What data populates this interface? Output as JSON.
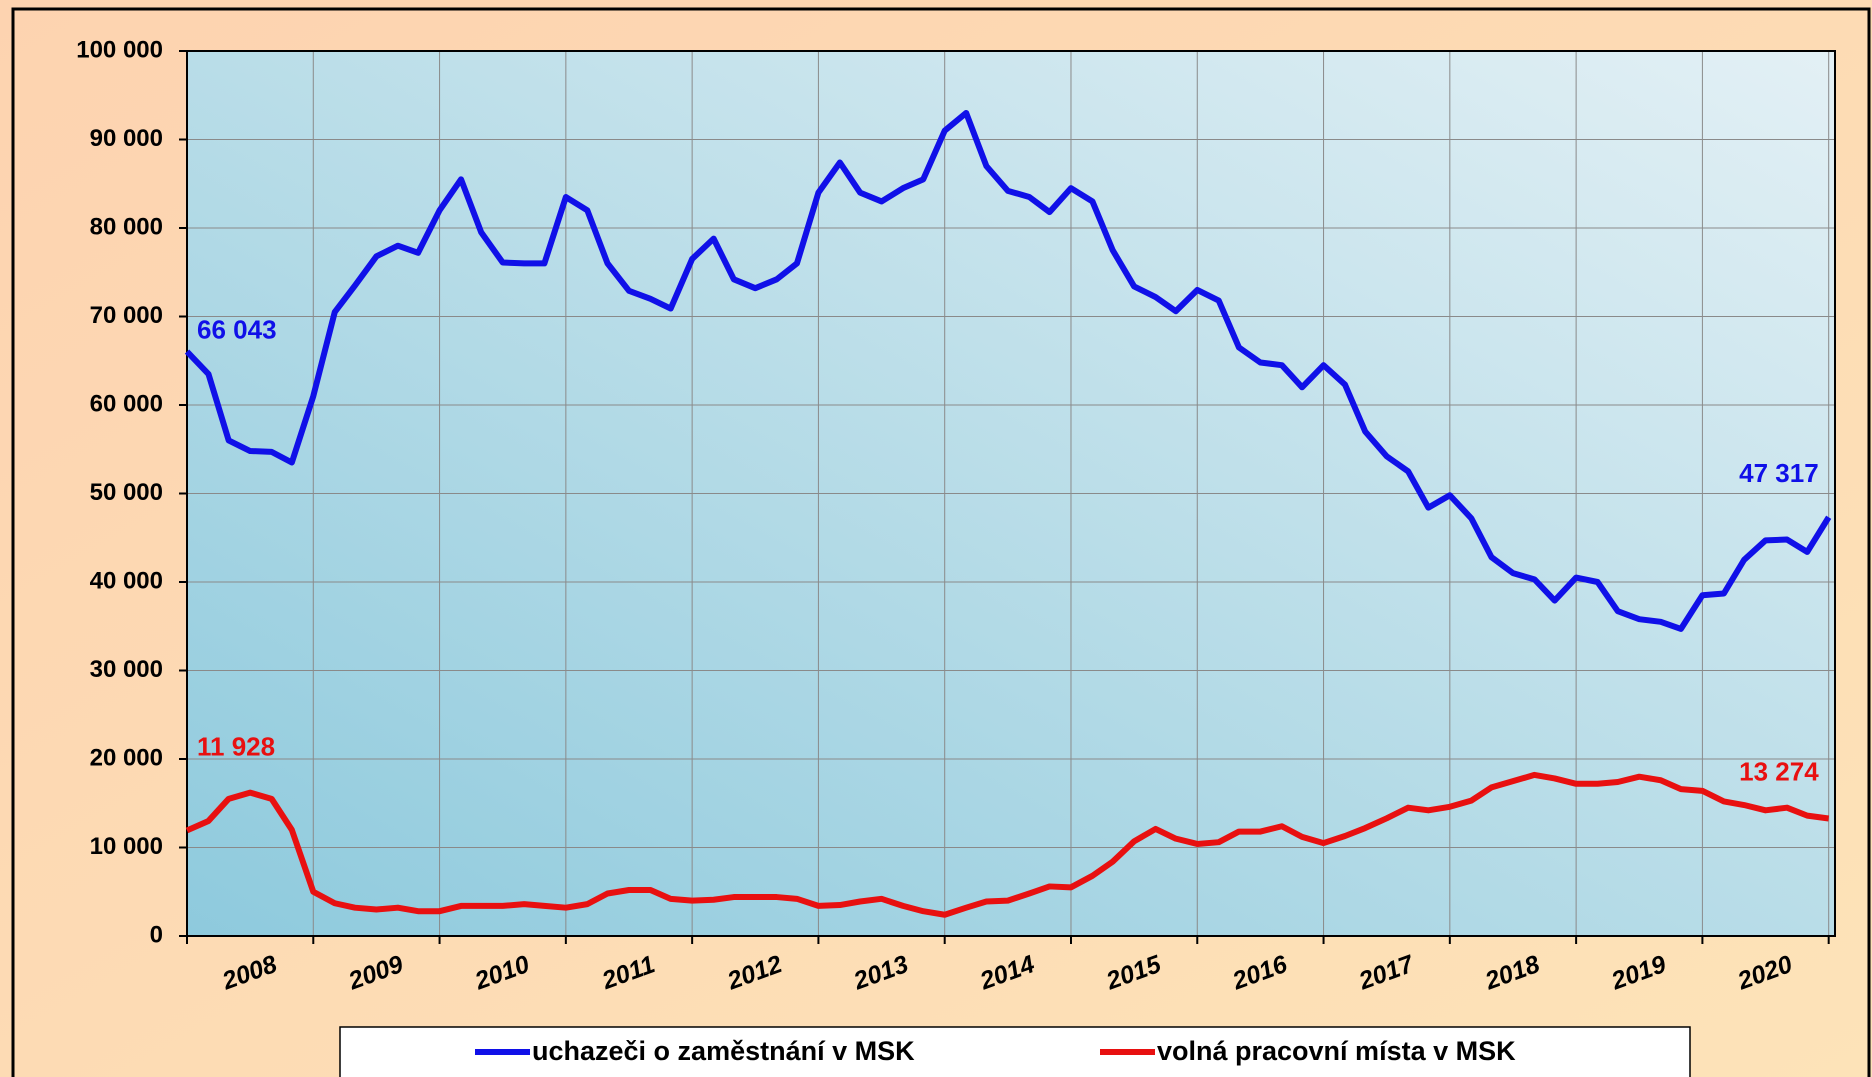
{
  "chart_data": {
    "type": "line",
    "x": [
      2008,
      2008.17,
      2008.33,
      2008.5,
      2008.67,
      2008.83,
      2009,
      2009.17,
      2009.33,
      2009.5,
      2009.67,
      2009.83,
      2010,
      2010.17,
      2010.33,
      2010.5,
      2010.67,
      2010.83,
      2011,
      2011.17,
      2011.33,
      2011.5,
      2011.67,
      2011.83,
      2012,
      2012.17,
      2012.33,
      2012.5,
      2012.67,
      2012.83,
      2013,
      2013.17,
      2013.33,
      2013.5,
      2013.67,
      2013.83,
      2014,
      2014.17,
      2014.33,
      2014.5,
      2014.67,
      2014.83,
      2015,
      2015.17,
      2015.33,
      2015.5,
      2015.67,
      2015.83,
      2016,
      2016.17,
      2016.33,
      2016.5,
      2016.67,
      2016.83,
      2017,
      2017.17,
      2017.33,
      2017.5,
      2017.67,
      2017.83,
      2018,
      2018.17,
      2018.33,
      2018.5,
      2018.67,
      2018.83,
      2019,
      2019.17,
      2019.33,
      2019.5,
      2019.67,
      2019.83,
      2020,
      2020.17,
      2020.33,
      2020.5,
      2020.67,
      2020.83,
      2021
    ],
    "series": [
      {
        "name": "uchazeči o zaměstnání v MSK",
        "color": "#1010e8",
        "values": [
          66043,
          63500,
          56000,
          54800,
          54700,
          53500,
          61000,
          70500,
          73500,
          76800,
          78000,
          77200,
          82000,
          85500,
          79500,
          76100,
          76000,
          76000,
          83500,
          82000,
          76000,
          72900,
          72000,
          70900,
          76500,
          78800,
          74200,
          73200,
          74200,
          76000,
          84000,
          87400,
          84000,
          83000,
          84500,
          85500,
          91000,
          93000,
          87000,
          84200,
          83500,
          81800,
          84500,
          83000,
          77500,
          73400,
          72200,
          70600,
          73000,
          71800,
          66500,
          64800,
          64500,
          62000,
          64500,
          62300,
          57000,
          54200,
          52500,
          48400,
          49800,
          47200,
          42800,
          41000,
          40300,
          37900,
          40500,
          40000,
          36700,
          35800,
          35500,
          34700,
          38500,
          38700,
          42500,
          44700,
          44800,
          43400,
          47317
        ],
        "value_labels": [
          "66 043",
          null,
          null,
          null,
          null,
          null,
          null,
          null,
          null,
          null,
          null,
          null,
          null,
          null,
          null,
          null,
          null,
          null,
          null,
          null,
          null,
          null,
          null,
          null,
          null,
          null,
          null,
          null,
          null,
          null,
          null,
          null,
          null,
          null,
          null,
          null,
          null,
          null,
          null,
          null,
          null,
          null,
          null,
          null,
          null,
          null,
          null,
          null,
          null,
          null,
          null,
          null,
          null,
          null,
          null,
          null,
          null,
          null,
          null,
          null,
          null,
          null,
          null,
          null,
          null,
          null,
          null,
          null,
          null,
          null,
          null,
          null,
          null,
          null,
          null,
          null,
          null,
          null,
          "47 317"
        ]
      },
      {
        "name": "volná pracovní místa v MSK",
        "color": "#e81010",
        "values": [
          11928,
          13000,
          15500,
          16200,
          15500,
          12000,
          5000,
          3700,
          3200,
          3000,
          3200,
          2800,
          2800,
          3400,
          3400,
          3400,
          3600,
          3400,
          3200,
          3600,
          4800,
          5200,
          5200,
          4200,
          4000,
          4100,
          4400,
          4400,
          4400,
          4200,
          3400,
          3500,
          3900,
          4200,
          3400,
          2800,
          2400,
          3200,
          3900,
          4000,
          4800,
          5600,
          5500,
          6800,
          8400,
          10700,
          12100,
          11000,
          10400,
          10600,
          11800,
          11800,
          12400,
          11200,
          10500,
          11300,
          12200,
          13300,
          14500,
          14200,
          14600,
          15300,
          16800,
          17500,
          18200,
          17800,
          17200,
          17200,
          17400,
          18000,
          17600,
          16600,
          16400,
          15200,
          14800,
          14200,
          14500,
          13600,
          13274
        ],
        "value_labels": [
          "11 928",
          null,
          null,
          null,
          null,
          null,
          null,
          null,
          null,
          null,
          null,
          null,
          null,
          null,
          null,
          null,
          null,
          null,
          null,
          null,
          null,
          null,
          null,
          null,
          null,
          null,
          null,
          null,
          null,
          null,
          null,
          null,
          null,
          null,
          null,
          null,
          null,
          null,
          null,
          null,
          null,
          null,
          null,
          null,
          null,
          null,
          null,
          null,
          null,
          null,
          null,
          null,
          null,
          null,
          null,
          null,
          null,
          null,
          null,
          null,
          null,
          null,
          null,
          null,
          null,
          null,
          null,
          null,
          null,
          null,
          null,
          null,
          null,
          null,
          null,
          null,
          null,
          null,
          "13 274"
        ]
      }
    ],
    "xlim": [
      2008,
      2021.05
    ],
    "xticks": [
      {
        "value": 2008.5,
        "label": "2008"
      },
      {
        "value": 2009.5,
        "label": "2009"
      },
      {
        "value": 2010.5,
        "label": "2010"
      },
      {
        "value": 2011.5,
        "label": "2011"
      },
      {
        "value": 2012.5,
        "label": "2012"
      },
      {
        "value": 2013.5,
        "label": "2013"
      },
      {
        "value": 2014.5,
        "label": "2014"
      },
      {
        "value": 2015.5,
        "label": "2015"
      },
      {
        "value": 2016.5,
        "label": "2016"
      },
      {
        "value": 2017.5,
        "label": "2017"
      },
      {
        "value": 2018.5,
        "label": "2018"
      },
      {
        "value": 2019.5,
        "label": "2019"
      },
      {
        "value": 2020.5,
        "label": "2020"
      }
    ],
    "xgrid": [
      2008,
      2009,
      2010,
      2011,
      2012,
      2013,
      2014,
      2015,
      2016,
      2017,
      2018,
      2019,
      2020,
      2021
    ],
    "ylim": [
      0,
      100000
    ],
    "yticks": [
      0,
      {
        "value": 10000,
        "label": "10 000"
      },
      {
        "value": 20000,
        "label": "20 000"
      },
      {
        "value": 30000,
        "label": "30 000"
      },
      {
        "value": 40000,
        "label": "40 000"
      },
      {
        "value": 50000,
        "label": "50 000"
      },
      {
        "value": 60000,
        "label": "60 000"
      },
      {
        "value": 70000,
        "label": "70 000"
      },
      {
        "value": 80000,
        "label": "80 000"
      },
      {
        "value": 90000,
        "label": "90 000"
      },
      {
        "value": 100000,
        "label": "100 000"
      }
    ],
    "grid": true,
    "legend": "bottom"
  }
}
